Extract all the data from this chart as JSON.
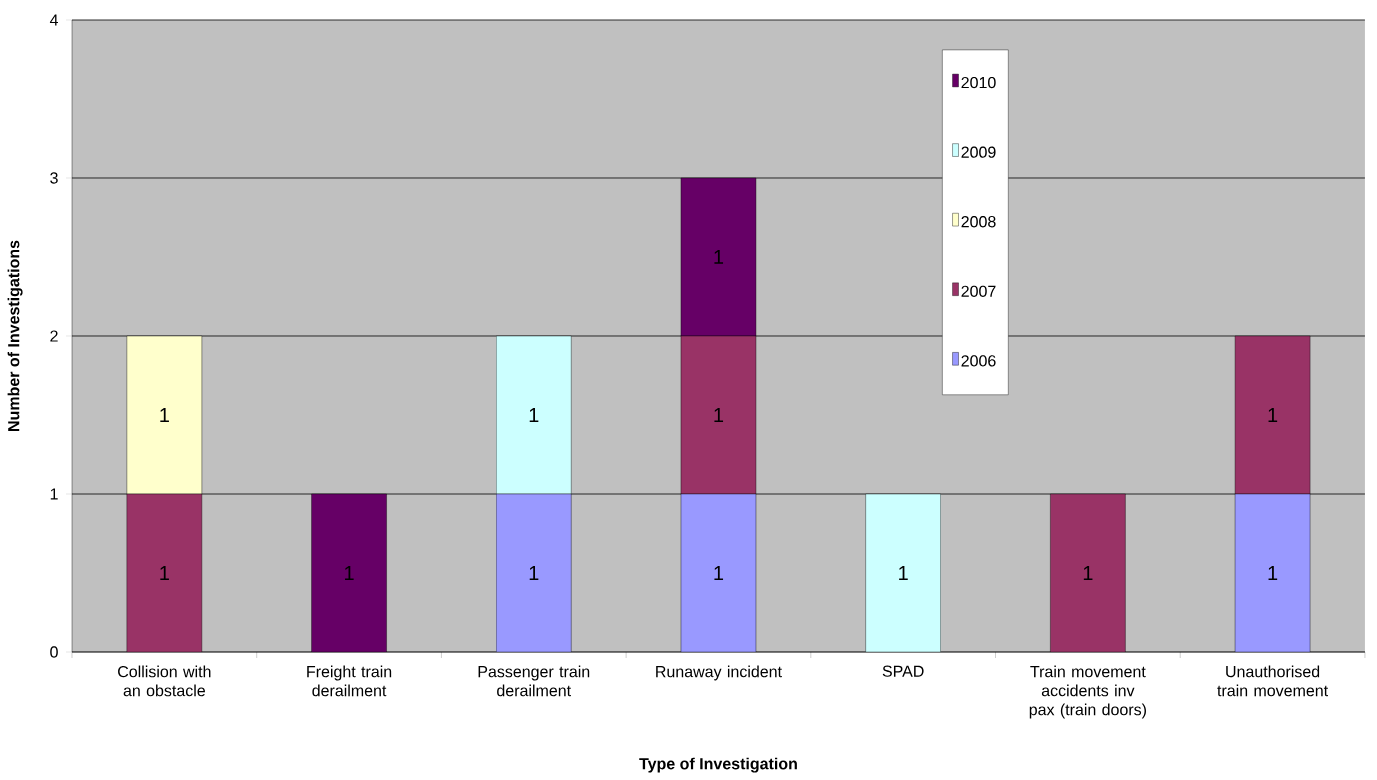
{
  "chart_data": {
    "type": "bar",
    "stacked": true,
    "xlabel": "Type of Investigation",
    "ylabel": "Number of Investigations",
    "categories": [
      "Collision with an obstacle",
      "Freight train derailment",
      "Passenger train derailment",
      "Runaway incident",
      "SPAD",
      "Train movement accidents inv pax (train doors)",
      "Unauthorised train movement"
    ],
    "ylim": [
      0,
      4
    ],
    "yticks": [
      0,
      1,
      2,
      3,
      4
    ],
    "grid": "y",
    "legend": "top right",
    "series": [
      {
        "name": "2006",
        "color": "#9999ff",
        "values": [
          0,
          0,
          1,
          1,
          0,
          0,
          1
        ],
        "value_labels": [
          null,
          null,
          "1",
          "1",
          null,
          null,
          "1"
        ]
      },
      {
        "name": "2007",
        "color": "#993366",
        "values": [
          1,
          0,
          0,
          1,
          0,
          1,
          1
        ],
        "value_labels": [
          "1",
          null,
          null,
          "1",
          null,
          "1",
          "1"
        ]
      },
      {
        "name": "2008",
        "color": "#ffffcc",
        "values": [
          1,
          0,
          0,
          0,
          0,
          0,
          0
        ],
        "value_labels": [
          "1",
          null,
          null,
          null,
          null,
          null,
          null
        ]
      },
      {
        "name": "2009",
        "color": "#ccffff",
        "values": [
          0,
          0,
          1,
          0,
          1,
          0,
          0
        ],
        "value_labels": [
          null,
          null,
          "1",
          null,
          "1",
          null,
          null
        ]
      },
      {
        "name": "2010",
        "color": "#660066",
        "values": [
          0,
          1,
          0,
          1,
          0,
          0,
          0
        ],
        "value_labels": [
          null,
          "1",
          null,
          "1",
          null,
          null,
          null
        ]
      }
    ]
  }
}
